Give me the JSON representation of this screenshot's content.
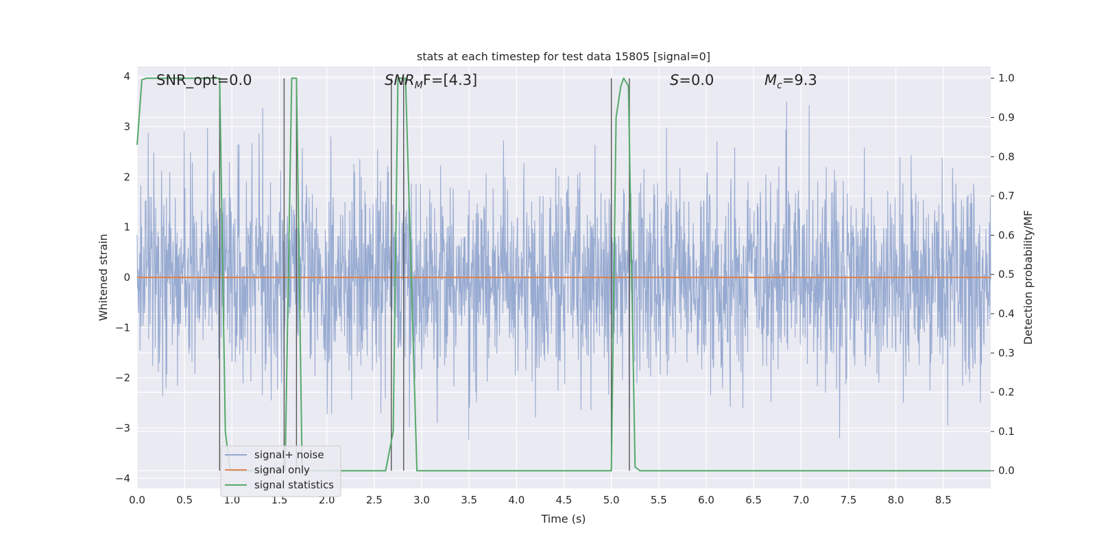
{
  "chart_data": {
    "type": "line",
    "title": "stats at each timestep for test data 15805 [signal=0]",
    "xlabel": "Time (s)",
    "ylabel_left": "Whitened strain",
    "ylabel_right": "Detection probability/MF",
    "xlim": [
      0.0,
      9.0
    ],
    "ylim_left": [
      -4.2,
      4.2
    ],
    "ylim_right": [
      -0.045,
      1.03
    ],
    "xticks": [
      0.0,
      0.5,
      1.0,
      1.5,
      2.0,
      2.5,
      3.0,
      3.5,
      4.0,
      4.5,
      5.0,
      5.5,
      6.0,
      6.5,
      7.0,
      7.5,
      8.0,
      8.5
    ],
    "xtick_labels": [
      "0.0",
      "0.5",
      "1.0",
      "1.5",
      "2.0",
      "2.5",
      "3.0",
      "3.5",
      "4.0",
      "4.5",
      "5.0",
      "5.5",
      "6.0",
      "6.5",
      "7.0",
      "7.5",
      "8.0",
      "8.5"
    ],
    "yticks_left": [
      -4,
      -3,
      -2,
      -1,
      0,
      1,
      2,
      3,
      4
    ],
    "ytick_labels_left": [
      "−4",
      "−3",
      "−2",
      "−1",
      "0",
      "1",
      "2",
      "3",
      "4"
    ],
    "yticks_right": [
      0.0,
      0.1,
      0.2,
      0.3,
      0.4,
      0.5,
      0.6,
      0.7,
      0.8,
      0.9,
      1.0
    ],
    "ytick_labels_right": [
      "0.0",
      "0.1",
      "0.2",
      "0.3",
      "0.4",
      "0.5",
      "0.6",
      "0.7",
      "0.8",
      "0.9",
      "1.0"
    ],
    "grid": true,
    "legend_placement": "lower-left",
    "annotations": {
      "snr_opt": "SNR_opt=0.0",
      "snr_mf_main": "SNR",
      "snr_mf_sub": "M",
      "snr_mf_tail": "F=[4.3]",
      "s_main": "S",
      "s_tail": "=0.0",
      "mc_main": "M",
      "mc_sub": "c",
      "mc_tail": "=9.3"
    },
    "series": [
      {
        "name": "signal+ noise",
        "axis": "left",
        "color": "#92a7cf",
        "sample_rate": 256,
        "noise_std": 1.0,
        "seed": 15805,
        "description_values": "gaussian whitened noise, roughly within [-3.9, 3.9]"
      },
      {
        "name": "signal only",
        "axis": "left",
        "color": "#dd8452",
        "x": [
          0.0,
          9.0
        ],
        "y": [
          0.0,
          0.0
        ]
      },
      {
        "name": "signal statistics",
        "axis": "right",
        "color": "#55a868",
        "x": [
          0.0,
          0.05,
          0.1,
          0.2,
          0.4,
          0.6,
          0.8,
          0.87,
          0.93,
          0.98,
          1.02,
          1.5,
          1.56,
          1.63,
          1.68,
          1.74,
          1.78,
          2.5,
          2.62,
          2.7,
          2.75,
          2.78,
          2.83,
          2.95,
          3.0,
          3.4,
          3.5,
          4.0,
          5.0,
          5.05,
          5.1,
          5.13,
          5.18,
          5.25,
          5.3,
          5.5,
          9.0
        ],
        "y": [
          0.83,
          0.996,
          1.0,
          1.0,
          1.0,
          1.0,
          1.0,
          1.0,
          0.1,
          0.0,
          0.0,
          0.0,
          0.0,
          1.0,
          1.0,
          0.0,
          0.0,
          0.0,
          0.0,
          0.1,
          1.0,
          1.0,
          1.0,
          0.0,
          0.0,
          0.0,
          0.0,
          0.0,
          0.0,
          0.9,
          0.98,
          1.0,
          0.98,
          0.01,
          0.0,
          0.0,
          0.0
        ]
      }
    ],
    "vlines": {
      "color": "#555555",
      "x": [
        0.87,
        1.55,
        1.68,
        2.68,
        2.81,
        5.0,
        5.19
      ],
      "y_range_right": [
        0.0,
        1.0
      ]
    }
  }
}
